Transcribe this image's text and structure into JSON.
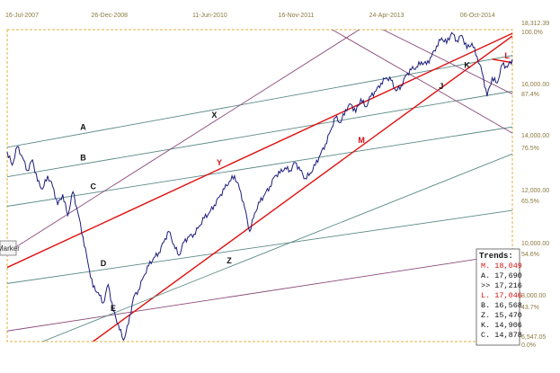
{
  "chart_data": {
    "type": "line",
    "title": "",
    "x_ticks": [
      "16-Jul-2007",
      "26-Dec-2008",
      "11-Jun-2010",
      "16-Nov-2011",
      "24-Apr-2013",
      "06-Oct-2014"
    ],
    "y_ticks": [
      {
        "value": "18,312.39",
        "pct": "100.0%"
      },
      {
        "value": "16,000.00",
        "pct": "87.4%"
      },
      {
        "value": "14,000.00",
        "pct": "76.5%"
      },
      {
        "value": "12,000.00",
        "pct": "65.5%"
      },
      {
        "value": "10,000.00",
        "pct": "54.6%"
      },
      {
        "value": "8,000.00",
        "pct": "43.7%"
      },
      {
        "value": "6,547.05",
        "pct": "0.0%"
      }
    ],
    "ylim": [
      6547.05,
      18312.39
    ],
    "grid": false,
    "series": [
      {
        "style": "price",
        "color": "#1c1c7a",
        "points": [
          [
            0.0,
            13700
          ],
          [
            0.01,
            13200
          ],
          [
            0.02,
            13900
          ],
          [
            0.03,
            13500
          ],
          [
            0.04,
            13000
          ],
          [
            0.05,
            13400
          ],
          [
            0.06,
            12600
          ],
          [
            0.07,
            12300
          ],
          [
            0.08,
            12800
          ],
          [
            0.09,
            12400
          ],
          [
            0.1,
            11700
          ],
          [
            0.11,
            12100
          ],
          [
            0.12,
            11300
          ],
          [
            0.13,
            12200
          ],
          [
            0.14,
            11400
          ],
          [
            0.15,
            10500
          ],
          [
            0.16,
            9500
          ],
          [
            0.17,
            8600
          ],
          [
            0.18,
            8400
          ],
          [
            0.19,
            8000
          ],
          [
            0.2,
            8700
          ],
          [
            0.21,
            7700
          ],
          [
            0.22,
            7200
          ],
          [
            0.23,
            6600
          ],
          [
            0.24,
            7200
          ],
          [
            0.25,
            8200
          ],
          [
            0.26,
            8500
          ],
          [
            0.27,
            9000
          ],
          [
            0.28,
            9400
          ],
          [
            0.29,
            9700
          ],
          [
            0.3,
            9900
          ],
          [
            0.31,
            10300
          ],
          [
            0.32,
            10700
          ],
          [
            0.33,
            10200
          ],
          [
            0.34,
            9800
          ],
          [
            0.35,
            10300
          ],
          [
            0.36,
            10500
          ],
          [
            0.37,
            10600
          ],
          [
            0.38,
            10900
          ],
          [
            0.39,
            11200
          ],
          [
            0.4,
            11400
          ],
          [
            0.41,
            11700
          ],
          [
            0.42,
            12000
          ],
          [
            0.43,
            12300
          ],
          [
            0.44,
            12600
          ],
          [
            0.45,
            12800
          ],
          [
            0.46,
            12300
          ],
          [
            0.47,
            11600
          ],
          [
            0.48,
            10700
          ],
          [
            0.49,
            11400
          ],
          [
            0.5,
            11800
          ],
          [
            0.51,
            12100
          ],
          [
            0.52,
            12400
          ],
          [
            0.53,
            12800
          ],
          [
            0.54,
            12900
          ],
          [
            0.55,
            13100
          ],
          [
            0.56,
            13000
          ],
          [
            0.57,
            13300
          ],
          [
            0.58,
            13000
          ],
          [
            0.59,
            12700
          ],
          [
            0.6,
            12900
          ],
          [
            0.61,
            13200
          ],
          [
            0.62,
            13600
          ],
          [
            0.63,
            14000
          ],
          [
            0.64,
            14500
          ],
          [
            0.65,
            15000
          ],
          [
            0.66,
            14800
          ],
          [
            0.67,
            15300
          ],
          [
            0.68,
            15500
          ],
          [
            0.69,
            15200
          ],
          [
            0.7,
            15700
          ],
          [
            0.71,
            15400
          ],
          [
            0.72,
            15800
          ],
          [
            0.73,
            16000
          ],
          [
            0.74,
            16300
          ],
          [
            0.75,
            16500
          ],
          [
            0.76,
            16400
          ],
          [
            0.77,
            16000
          ],
          [
            0.78,
            16200
          ],
          [
            0.79,
            16600
          ],
          [
            0.8,
            16800
          ],
          [
            0.81,
            16900
          ],
          [
            0.82,
            17100
          ],
          [
            0.83,
            17000
          ],
          [
            0.84,
            17300
          ],
          [
            0.85,
            17700
          ],
          [
            0.86,
            18000
          ],
          [
            0.87,
            17800
          ],
          [
            0.88,
            18200
          ],
          [
            0.89,
            17900
          ],
          [
            0.9,
            18100
          ],
          [
            0.91,
            17600
          ],
          [
            0.92,
            17800
          ],
          [
            0.93,
            17300
          ],
          [
            0.94,
            16700
          ],
          [
            0.95,
            15800
          ],
          [
            0.96,
            16500
          ],
          [
            0.97,
            16300
          ],
          [
            0.98,
            17000
          ],
          [
            0.99,
            16900
          ],
          [
            1.0,
            17200
          ]
        ]
      }
    ],
    "trendlines": [
      {
        "label": "A",
        "color": "#5a8a86",
        "from": [
          -0.05,
          13700
        ],
        "to": [
          1.22,
          18100
        ]
      },
      {
        "label": "B",
        "color": "#5a8a86",
        "from": [
          -0.05,
          12600
        ],
        "to": [
          1.22,
          16700
        ]
      },
      {
        "label": "C",
        "color": "#5a8a86",
        "from": [
          -0.05,
          11500
        ],
        "to": [
          1.22,
          15300
        ]
      },
      {
        "label": "D",
        "color": "#5a8a86",
        "from": [
          -0.05,
          8600
        ],
        "to": [
          1.22,
          12100
        ]
      },
      {
        "label": "E",
        "color": "#8a4a7a",
        "from": [
          -0.05,
          6800
        ],
        "to": [
          1.22,
          10500
        ]
      },
      {
        "label": "Y",
        "color": "#e01010",
        "from": [
          -0.05,
          8900
        ],
        "to": [
          1.02,
          18350
        ]
      },
      {
        "label": "M",
        "color": "#e01010",
        "from": [
          0.17,
          6547
        ],
        "to": [
          1.02,
          18350
        ]
      },
      {
        "label": "X",
        "color": "#8a4a7a",
        "from": [
          -0.05,
          9300
        ],
        "to": [
          0.7,
          18350
        ]
      },
      {
        "label": "Z",
        "color": "#5a8a86",
        "from": [
          0.07,
          6547
        ],
        "to": [
          1.22,
          15300
        ]
      },
      {
        "label": "J",
        "color": "#8a4a7a",
        "from": [
          0.64,
          18350
        ],
        "to": [
          1.22,
          12000
        ]
      },
      {
        "label": "K",
        "color": "#8a4a7a",
        "from": [
          0.74,
          18350
        ],
        "to": [
          1.22,
          13800
        ]
      },
      {
        "label": "L",
        "color": "#e01010",
        "from": [
          0.96,
          17200
        ],
        "to": [
          1.05,
          16900
        ]
      }
    ],
    "panel": {
      "title": "Trends:",
      "rows": [
        {
          "prefix": "M.",
          "value": "18,049",
          "color": "#d81010"
        },
        {
          "prefix": "A.",
          "value": "17,690",
          "color": "#111111"
        },
        {
          "prefix": ">>",
          "value": "17,216",
          "color": "#111111"
        },
        {
          "prefix": "L.",
          "value": "17,046",
          "color": "#d81010"
        },
        {
          "prefix": "B.",
          "value": "16,568",
          "color": "#111111"
        },
        {
          "prefix": "Z.",
          "value": "15,470",
          "color": "#111111"
        },
        {
          "prefix": "K.",
          "value": "14,906",
          "color": "#111111"
        },
        {
          "prefix": "C.",
          "value": "14,878",
          "color": "#111111"
        }
      ]
    },
    "marker_tab": "Marker",
    "axis_color": "#8a7a40",
    "frame_color": "#e0b040"
  }
}
